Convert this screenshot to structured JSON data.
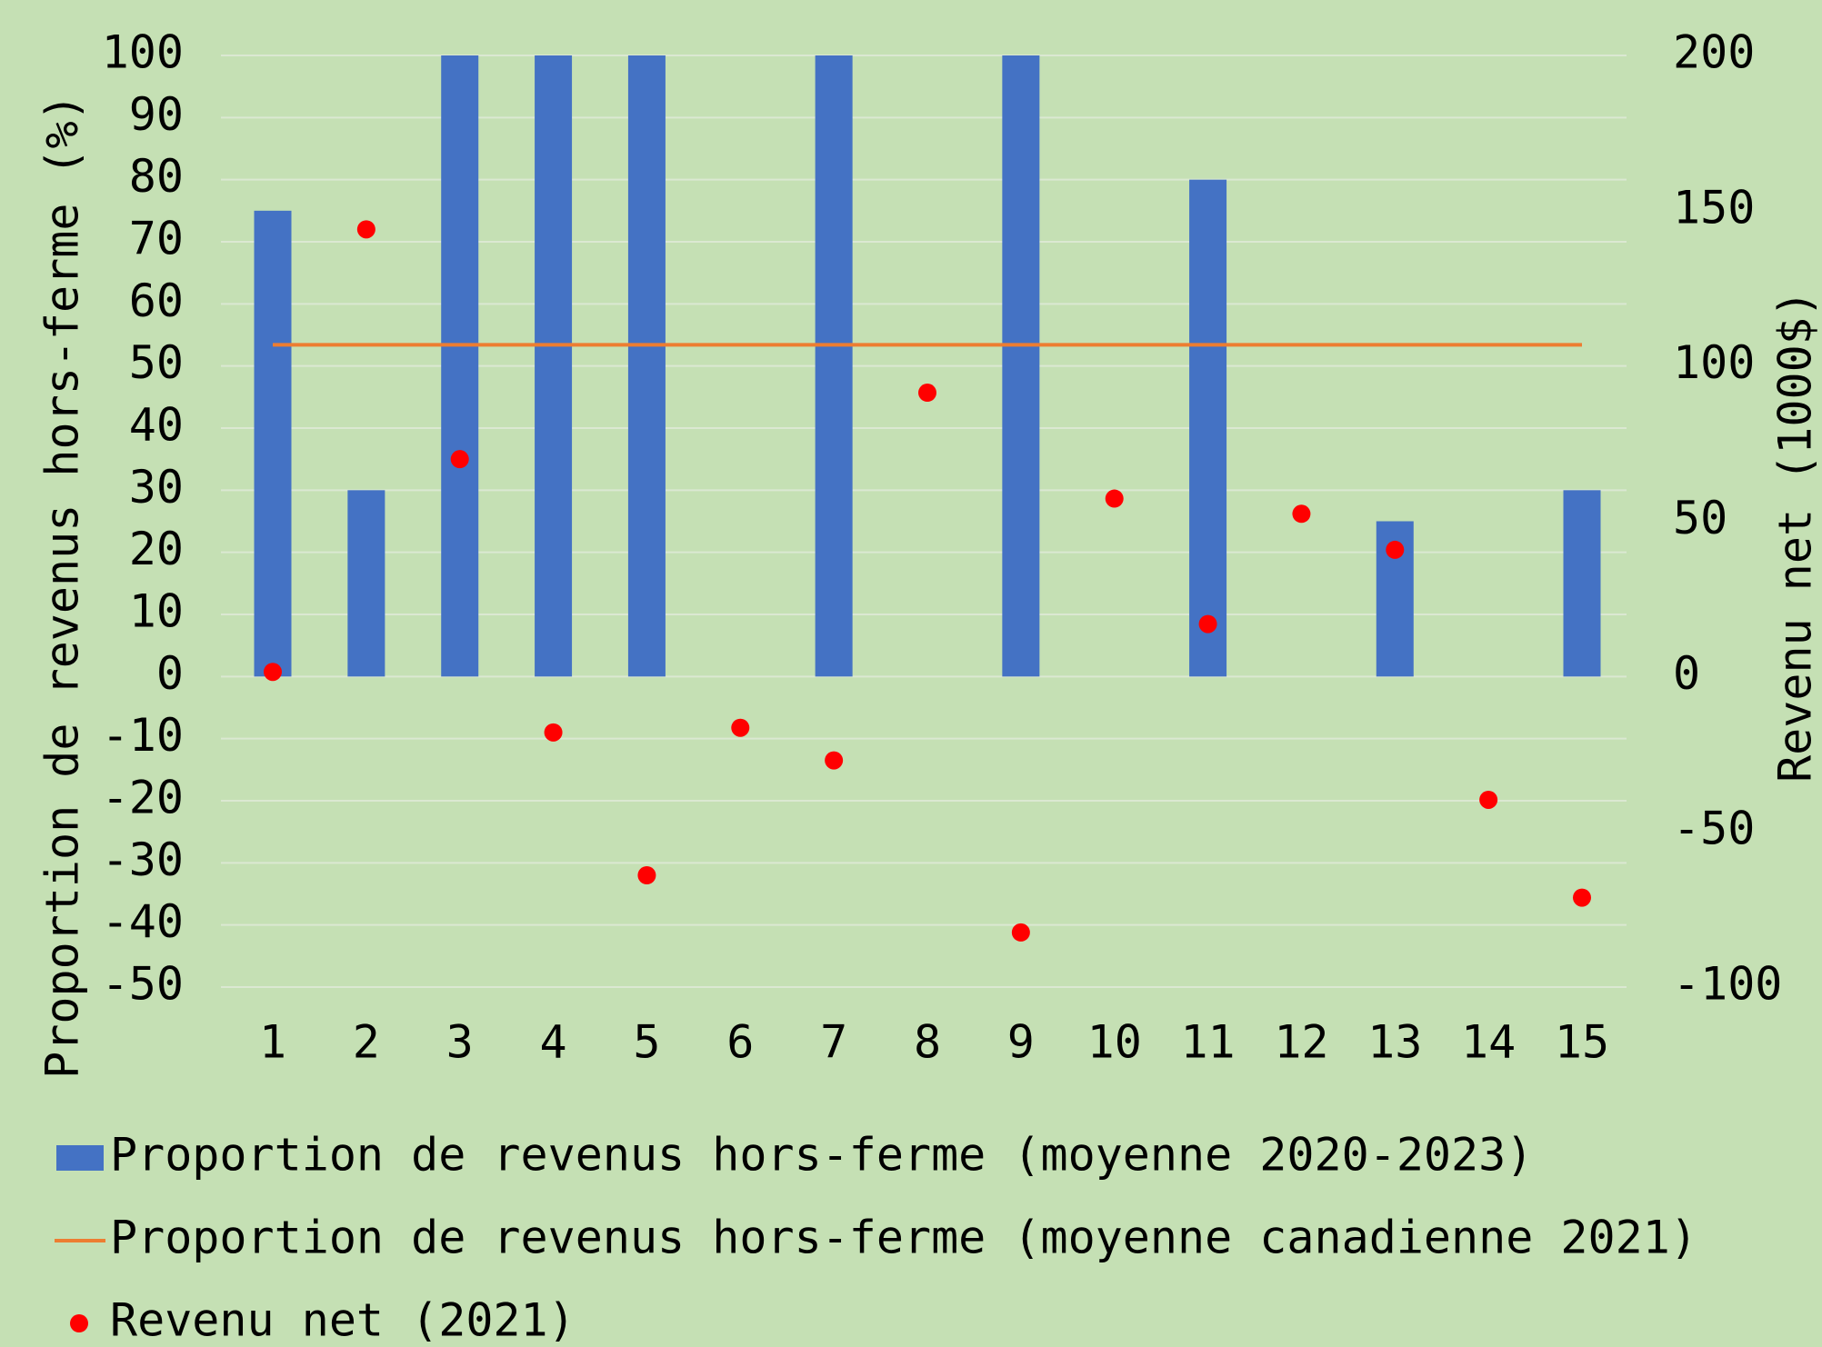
{
  "chart_data": {
    "type": "bar",
    "categories": [
      "1",
      "2",
      "3",
      "4",
      "5",
      "6",
      "7",
      "8",
      "9",
      "10",
      "11",
      "12",
      "13",
      "14",
      "15"
    ],
    "series": [
      {
        "name": "Proportion de revenus hors-ferme (moyenne 2020-2023)",
        "type": "bar",
        "color": "#4472c4",
        "values": [
          75,
          30,
          100,
          100,
          100,
          0,
          100,
          0,
          100,
          0,
          80,
          0,
          25,
          0,
          30
        ]
      },
      {
        "name": "Proportion de revenus hors-ferme (moyenne canadienne 2021)",
        "type": "line",
        "color": "#ed7d31",
        "values": [
          53.4,
          53.4,
          53.4,
          53.4,
          53.4,
          53.4,
          53.4,
          53.4,
          53.4,
          53.4,
          53.4,
          53.4,
          53.4,
          53.4,
          53.4
        ]
      },
      {
        "name": "Revenu net (2021)",
        "type": "scatter",
        "color": "#ff0000",
        "axis": "y2",
        "values": [
          1.5,
          144,
          70,
          -18,
          -64,
          -16.5,
          -27,
          91.4,
          -82.4,
          57.3,
          16.9,
          52.4,
          40.8,
          -39.7,
          -71.2
        ]
      }
    ],
    "y_label": "Proportion de revenus hors-ferme (%)",
    "y2_label": "Revenu net (1000$)",
    "ylim": [
      -50,
      100
    ],
    "yticks": [
      -50,
      -40,
      -30,
      -20,
      -10,
      0,
      10,
      20,
      30,
      40,
      50,
      60,
      70,
      80,
      90,
      100
    ],
    "y2lim": [
      -100,
      200
    ],
    "y2ticks": [
      -100,
      -50,
      0,
      50,
      100,
      150,
      200
    ],
    "grid": true,
    "legend": "bottom"
  }
}
